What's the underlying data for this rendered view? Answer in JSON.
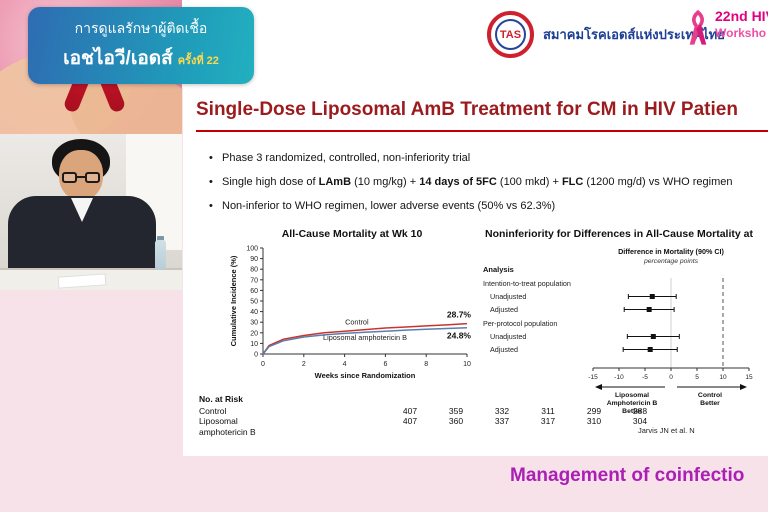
{
  "colors": {
    "bg_pink": "#f8e2ea",
    "title_red": "#9b1b1e",
    "rule_red": "#c00000",
    "control_red": "#c8352e",
    "lamb_blue": "#5b7db1",
    "footer_purple": "#ab1fb5",
    "workshop_pink": "#e2007f",
    "society_blue": "#1d3f94"
  },
  "header": {
    "banner": {
      "line1": "การดูแลรักษาผู้ติดเชื้อ",
      "line2": "เอชไอวี/เอดส์",
      "session": "ครั้งที่ 22"
    },
    "society": {
      "abbr": "TAS",
      "name": "สมาคมโรคเอดส์แห่งประเทศไทย"
    },
    "workshop": {
      "line1": "22nd HIV",
      "line2": "Worksho"
    }
  },
  "slide": {
    "title": "Single-Dose Liposomal AmB Treatment for CM in HIV Patien",
    "bullets": [
      [
        {
          "t": "Phase 3 randomized, controlled, non-inferiority trial",
          "b": false
        }
      ],
      [
        {
          "t": "Single high dose of ",
          "b": false
        },
        {
          "t": "LAmB",
          "b": true
        },
        {
          "t": " (10 mg/kg) + ",
          "b": false
        },
        {
          "t": "14 days of 5FC",
          "b": true
        },
        {
          "t": " (100 mkd) + ",
          "b": false
        },
        {
          "t": "FLC",
          "b": true
        },
        {
          "t": " (1200 mg/d) vs WHO regimen",
          "b": false
        }
      ],
      [
        {
          "t": "Non-inferior to WHO regimen, lower adverse events (50% vs 62.3%)",
          "b": false
        }
      ]
    ],
    "citation": "Jarvis JN et al. N"
  },
  "footer": {
    "text": "Management of coinfectio"
  },
  "chart_data": [
    {
      "type": "line",
      "title": "All-Cause Mortality at Wk 10",
      "xlabel": "Weeks since Randomization",
      "ylabel": "Cumulative Incidence (%)",
      "xlim": [
        0,
        10
      ],
      "ylim": [
        0,
        100
      ],
      "xticks": [
        0,
        2,
        4,
        6,
        8,
        10
      ],
      "yticks": [
        0,
        10,
        20,
        30,
        40,
        50,
        60,
        70,
        80,
        90,
        100
      ],
      "series": [
        {
          "name": "Control",
          "color": "#c8352e",
          "end_label": "28.7%",
          "end_label_dy": -6,
          "label_at": [
            4.6,
            28
          ],
          "x": [
            0,
            0.3,
            1,
            2,
            3,
            4,
            5,
            6,
            7,
            8,
            9,
            10
          ],
          "y": [
            0,
            8,
            14,
            17.5,
            20,
            21.5,
            23,
            24.5,
            25.5,
            26.5,
            27.5,
            28.7
          ]
        },
        {
          "name": "Liposomal amphotericin B",
          "color": "#5b7db1",
          "end_label": "24.8%",
          "end_label_dy": 11,
          "label_at": [
            5.0,
            13
          ],
          "x": [
            0,
            0.3,
            1,
            2,
            3,
            4,
            5,
            6,
            7,
            8,
            9,
            10
          ],
          "y": [
            0,
            7,
            12.5,
            16,
            18,
            19.5,
            20.5,
            21.5,
            22.5,
            23.3,
            24,
            24.8
          ]
        }
      ],
      "risk_table": {
        "header": "No. at Risk",
        "rows": [
          {
            "label": "Control",
            "values": [
              "407",
              "359",
              "332",
              "311",
              "299",
              "288"
            ]
          },
          {
            "label": "Liposomal\namphotericin B",
            "values": [
              "407",
              "360",
              "337",
              "317",
              "310",
              "304"
            ]
          }
        ]
      }
    },
    {
      "type": "forest",
      "title": "Noninferiority for Differences in All-Cause Mortality at",
      "col_header": "Difference in Mortality (90% CI)",
      "col_subheader": "percentage points",
      "row_header": "Analysis",
      "xlim": [
        -15,
        15
      ],
      "xticks": [
        -15,
        -10,
        -5,
        0,
        5,
        10,
        15
      ],
      "margin_line": 10,
      "groups": [
        {
          "label": "Intention-to-treat population",
          "items": [
            {
              "label": "Unadjusted",
              "est": -3.6,
              "lo": -8.2,
              "hi": 1.0
            },
            {
              "label": "Adjusted",
              "est": -4.2,
              "lo": -9.0,
              "hi": 0.6
            }
          ]
        },
        {
          "label": "Per-protocol population",
          "items": [
            {
              "label": "Unadjusted",
              "est": -3.4,
              "lo": -8.4,
              "hi": 1.6
            },
            {
              "label": "Adjusted",
              "est": -4.0,
              "lo": -9.2,
              "hi": 1.2
            }
          ]
        }
      ],
      "left_arrow_label": [
        "Liposomal",
        "Amphotericin B",
        "Better"
      ],
      "right_arrow_label": [
        "Control",
        "Better"
      ]
    }
  ]
}
